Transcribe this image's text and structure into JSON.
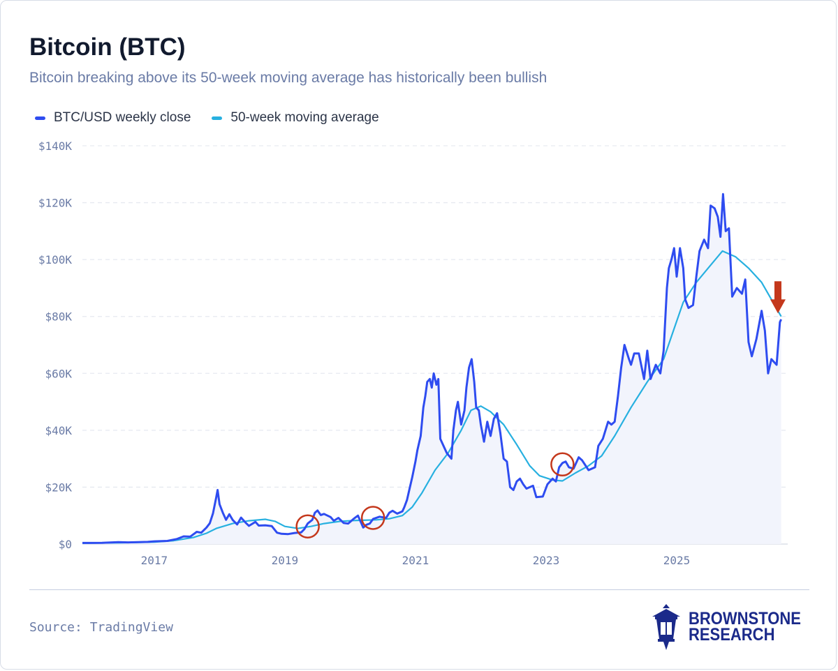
{
  "title": "Bitcoin (BTC)",
  "subtitle": "Bitcoin breaking above its 50-week moving average has historically been bullish",
  "legend": [
    {
      "label": "BTC/USD weekly close",
      "color": "#2e4cf0"
    },
    {
      "label": "50-week moving average",
      "color": "#27b0e0"
    }
  ],
  "source": "Source: TradingView",
  "logo": {
    "line1": "BROWNSTONE",
    "line2": "RESEARCH",
    "color": "#1b2a8a"
  },
  "colors": {
    "price": "#2e4cf0",
    "ma": "#27b0e0",
    "area": "#f2f4fc",
    "marker": "#c4381c",
    "grid": "#e6e9f0",
    "tick": "#6a7ba6"
  },
  "chart_data": {
    "type": "line",
    "xlim": [
      2015.9,
      2026.7
    ],
    "ylim": [
      0,
      140000
    ],
    "x_ticks": [
      {
        "value": 2017,
        "label": "2017"
      },
      {
        "value": 2019,
        "label": "2019"
      },
      {
        "value": 2021,
        "label": "2021"
      },
      {
        "value": 2023,
        "label": "2023"
      },
      {
        "value": 2025,
        "label": "2025"
      }
    ],
    "y_ticks": [
      {
        "value": 0,
        "label": "$0"
      },
      {
        "value": 20000,
        "label": "$20K"
      },
      {
        "value": 40000,
        "label": "$40K"
      },
      {
        "value": 60000,
        "label": "$60K"
      },
      {
        "value": 80000,
        "label": "$80K"
      },
      {
        "value": 100000,
        "label": "$100K"
      },
      {
        "value": 120000,
        "label": "$120K"
      },
      {
        "value": 140000,
        "label": "$140K"
      }
    ],
    "grid": true,
    "legend_position": "top-left",
    "series": [
      {
        "name": "BTC/USD weekly close",
        "points": [
          [
            2015.9,
            400
          ],
          [
            2016.2,
            420
          ],
          [
            2016.45,
            650
          ],
          [
            2016.6,
            600
          ],
          [
            2016.9,
            750
          ],
          [
            2017.0,
            950
          ],
          [
            2017.2,
            1100
          ],
          [
            2017.35,
            1800
          ],
          [
            2017.45,
            2700
          ],
          [
            2017.55,
            2600
          ],
          [
            2017.65,
            4300
          ],
          [
            2017.72,
            4000
          ],
          [
            2017.8,
            5800
          ],
          [
            2017.85,
            7300
          ],
          [
            2017.9,
            10800
          ],
          [
            2017.95,
            16500
          ],
          [
            2017.97,
            19000
          ],
          [
            2018.0,
            14000
          ],
          [
            2018.05,
            11000
          ],
          [
            2018.1,
            8500
          ],
          [
            2018.15,
            10500
          ],
          [
            2018.2,
            8500
          ],
          [
            2018.27,
            6900
          ],
          [
            2018.33,
            9300
          ],
          [
            2018.4,
            7500
          ],
          [
            2018.45,
            6400
          ],
          [
            2018.55,
            7800
          ],
          [
            2018.6,
            6500
          ],
          [
            2018.7,
            6600
          ],
          [
            2018.8,
            6300
          ],
          [
            2018.88,
            4000
          ],
          [
            2018.95,
            3600
          ],
          [
            2019.05,
            3500
          ],
          [
            2019.15,
            3900
          ],
          [
            2019.25,
            4100
          ],
          [
            2019.3,
            5300
          ],
          [
            2019.35,
            7200
          ],
          [
            2019.42,
            8500
          ],
          [
            2019.46,
            11000
          ],
          [
            2019.5,
            11800
          ],
          [
            2019.55,
            10200
          ],
          [
            2019.6,
            10600
          ],
          [
            2019.7,
            9500
          ],
          [
            2019.75,
            8200
          ],
          [
            2019.82,
            9200
          ],
          [
            2019.9,
            7400
          ],
          [
            2019.97,
            7200
          ],
          [
            2020.05,
            8800
          ],
          [
            2020.12,
            10000
          ],
          [
            2020.2,
            5800
          ],
          [
            2020.25,
            6800
          ],
          [
            2020.3,
            7200
          ],
          [
            2020.35,
            8800
          ],
          [
            2020.45,
            9600
          ],
          [
            2020.55,
            9200
          ],
          [
            2020.6,
            11000
          ],
          [
            2020.65,
            11700
          ],
          [
            2020.72,
            10700
          ],
          [
            2020.8,
            11500
          ],
          [
            2020.83,
            13000
          ],
          [
            2020.87,
            15500
          ],
          [
            2020.9,
            18500
          ],
          [
            2020.95,
            23500
          ],
          [
            2021.0,
            29000
          ],
          [
            2021.03,
            33000
          ],
          [
            2021.08,
            38000
          ],
          [
            2021.12,
            48000
          ],
          [
            2021.15,
            52000
          ],
          [
            2021.18,
            57000
          ],
          [
            2021.22,
            58000
          ],
          [
            2021.25,
            55000
          ],
          [
            2021.28,
            60000
          ],
          [
            2021.32,
            56000
          ],
          [
            2021.35,
            58000
          ],
          [
            2021.38,
            37000
          ],
          [
            2021.42,
            35000
          ],
          [
            2021.48,
            32000
          ],
          [
            2021.55,
            30000
          ],
          [
            2021.58,
            40000
          ],
          [
            2021.62,
            47000
          ],
          [
            2021.65,
            50000
          ],
          [
            2021.7,
            42000
          ],
          [
            2021.75,
            47000
          ],
          [
            2021.78,
            55000
          ],
          [
            2021.82,
            62000
          ],
          [
            2021.86,
            65000
          ],
          [
            2021.9,
            57000
          ],
          [
            2021.93,
            48000
          ],
          [
            2021.97,
            47000
          ],
          [
            2022.0,
            42000
          ],
          [
            2022.05,
            36000
          ],
          [
            2022.1,
            43000
          ],
          [
            2022.15,
            38000
          ],
          [
            2022.2,
            44000
          ],
          [
            2022.25,
            46000
          ],
          [
            2022.3,
            39000
          ],
          [
            2022.35,
            30000
          ],
          [
            2022.4,
            29000
          ],
          [
            2022.45,
            20000
          ],
          [
            2022.5,
            19000
          ],
          [
            2022.55,
            22000
          ],
          [
            2022.6,
            23000
          ],
          [
            2022.65,
            21000
          ],
          [
            2022.7,
            19500
          ],
          [
            2022.8,
            20500
          ],
          [
            2022.85,
            16500
          ],
          [
            2022.95,
            16700
          ],
          [
            2023.02,
            21000
          ],
          [
            2023.1,
            23000
          ],
          [
            2023.15,
            22000
          ],
          [
            2023.2,
            27000
          ],
          [
            2023.25,
            28500
          ],
          [
            2023.3,
            29000
          ],
          [
            2023.35,
            27000
          ],
          [
            2023.42,
            26500
          ],
          [
            2023.5,
            30500
          ],
          [
            2023.55,
            29500
          ],
          [
            2023.65,
            26000
          ],
          [
            2023.75,
            27000
          ],
          [
            2023.8,
            34500
          ],
          [
            2023.87,
            37000
          ],
          [
            2023.95,
            43000
          ],
          [
            2024.0,
            42000
          ],
          [
            2024.05,
            43000
          ],
          [
            2024.1,
            52000
          ],
          [
            2024.15,
            62000
          ],
          [
            2024.2,
            70000
          ],
          [
            2024.27,
            65000
          ],
          [
            2024.3,
            63000
          ],
          [
            2024.35,
            67000
          ],
          [
            2024.42,
            67000
          ],
          [
            2024.5,
            58000
          ],
          [
            2024.55,
            68000
          ],
          [
            2024.6,
            58000
          ],
          [
            2024.68,
            63000
          ],
          [
            2024.75,
            60000
          ],
          [
            2024.8,
            68000
          ],
          [
            2024.85,
            90000
          ],
          [
            2024.88,
            97000
          ],
          [
            2024.92,
            100000
          ],
          [
            2024.96,
            104000
          ],
          [
            2025.0,
            94000
          ],
          [
            2025.05,
            104000
          ],
          [
            2025.1,
            97000
          ],
          [
            2025.13,
            86000
          ],
          [
            2025.18,
            83000
          ],
          [
            2025.25,
            84000
          ],
          [
            2025.3,
            94000
          ],
          [
            2025.35,
            103000
          ],
          [
            2025.42,
            107000
          ],
          [
            2025.48,
            104000
          ],
          [
            2025.52,
            119000
          ],
          [
            2025.58,
            118000
          ],
          [
            2025.63,
            115000
          ],
          [
            2025.67,
            108000
          ],
          [
            2025.71,
            123000
          ],
          [
            2025.75,
            110000
          ],
          [
            2025.8,
            111000
          ],
          [
            2025.85,
            87000
          ],
          [
            2025.92,
            90000
          ],
          [
            2026.0,
            88000
          ],
          [
            2026.05,
            93000
          ],
          [
            2026.1,
            71000
          ],
          [
            2026.15,
            66000
          ],
          [
            2026.22,
            72000
          ],
          [
            2026.3,
            82000
          ],
          [
            2026.35,
            75000
          ],
          [
            2026.4,
            60000
          ],
          [
            2026.45,
            65000
          ],
          [
            2026.53,
            63000
          ],
          [
            2026.58,
            78000
          ],
          [
            2026.6,
            79000
          ]
        ]
      },
      {
        "name": "50-week moving average",
        "points": [
          [
            2015.9,
            300
          ],
          [
            2016.5,
            450
          ],
          [
            2017.0,
            700
          ],
          [
            2017.3,
            1200
          ],
          [
            2017.6,
            2300
          ],
          [
            2017.8,
            3800
          ],
          [
            2017.95,
            5500
          ],
          [
            2018.2,
            7200
          ],
          [
            2018.45,
            8200
          ],
          [
            2018.7,
            8700
          ],
          [
            2018.85,
            8000
          ],
          [
            2019.0,
            6200
          ],
          [
            2019.2,
            5500
          ],
          [
            2019.4,
            6200
          ],
          [
            2019.6,
            7200
          ],
          [
            2019.85,
            8000
          ],
          [
            2020.1,
            8300
          ],
          [
            2020.4,
            8500
          ],
          [
            2020.6,
            8900
          ],
          [
            2020.8,
            10000
          ],
          [
            2020.95,
            13000
          ],
          [
            2021.1,
            18000
          ],
          [
            2021.3,
            26000
          ],
          [
            2021.5,
            32000
          ],
          [
            2021.7,
            40000
          ],
          [
            2021.85,
            47000
          ],
          [
            2022.0,
            48500
          ],
          [
            2022.15,
            46500
          ],
          [
            2022.35,
            42000
          ],
          [
            2022.55,
            35000
          ],
          [
            2022.75,
            27500
          ],
          [
            2022.9,
            24000
          ],
          [
            2023.1,
            22500
          ],
          [
            2023.25,
            22200
          ],
          [
            2023.45,
            25000
          ],
          [
            2023.65,
            27500
          ],
          [
            2023.85,
            31000
          ],
          [
            2024.05,
            38000
          ],
          [
            2024.3,
            48000
          ],
          [
            2024.55,
            57000
          ],
          [
            2024.8,
            65000
          ],
          [
            2024.95,
            75000
          ],
          [
            2025.1,
            85000
          ],
          [
            2025.3,
            92000
          ],
          [
            2025.5,
            97500
          ],
          [
            2025.7,
            103000
          ],
          [
            2025.9,
            101000
          ],
          [
            2026.1,
            97000
          ],
          [
            2026.3,
            92000
          ],
          [
            2026.45,
            86000
          ],
          [
            2026.6,
            80000
          ]
        ]
      }
    ],
    "annotations": [
      {
        "type": "circle",
        "x": 2019.35,
        "y": 6200
      },
      {
        "type": "circle",
        "x": 2020.35,
        "y": 9200
      },
      {
        "type": "circle",
        "x": 2023.25,
        "y": 28000
      },
      {
        "type": "down-arrow",
        "x": 2026.55,
        "y": 86000
      }
    ]
  }
}
